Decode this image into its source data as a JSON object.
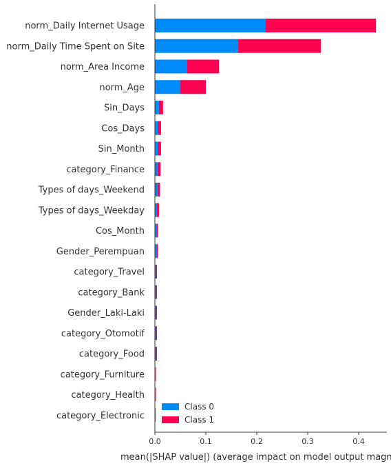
{
  "chart_data": {
    "type": "bar",
    "orientation": "horizontal",
    "stacked": true,
    "categories": [
      "norm_Daily Internet Usage",
      "norm_Daily Time Spent on Site",
      "norm_Area Income",
      "norm_Age",
      "Sin_Days",
      "Cos_Days",
      "Sin_Month",
      "category_Finance",
      "Types of days_Weekend",
      "Types of days_Weekday",
      "Cos_Month",
      "Gender_Perempuan",
      "category_Travel",
      "category_Bank",
      "Gender_Laki-Laki",
      "category_Otomotif",
      "category_Food",
      "category_Furniture",
      "category_Health",
      "category_Electronic"
    ],
    "series": [
      {
        "name": "Class 0",
        "color": "#008bfb",
        "values": [
          0.217,
          0.163,
          0.063,
          0.05,
          0.008,
          0.006,
          0.006,
          0.005,
          0.005,
          0.004,
          0.003,
          0.003,
          0.002,
          0.002,
          0.002,
          0.002,
          0.002,
          0.001,
          0.001,
          0.0005
        ]
      },
      {
        "name": "Class 1",
        "color": "#ff0051",
        "values": [
          0.217,
          0.163,
          0.063,
          0.05,
          0.008,
          0.006,
          0.006,
          0.006,
          0.005,
          0.004,
          0.003,
          0.003,
          0.002,
          0.002,
          0.002,
          0.002,
          0.002,
          0.001,
          0.001,
          0.0005
        ]
      }
    ],
    "x_ticks": [
      "0.0",
      "0.1",
      "0.2",
      "0.3",
      "0.4"
    ],
    "xlim": [
      0,
      0.455
    ],
    "xlabel": "mean(|SHAP value|) (average impact on model output magnitude)",
    "legend_position": "lower-right",
    "grid": false
  }
}
